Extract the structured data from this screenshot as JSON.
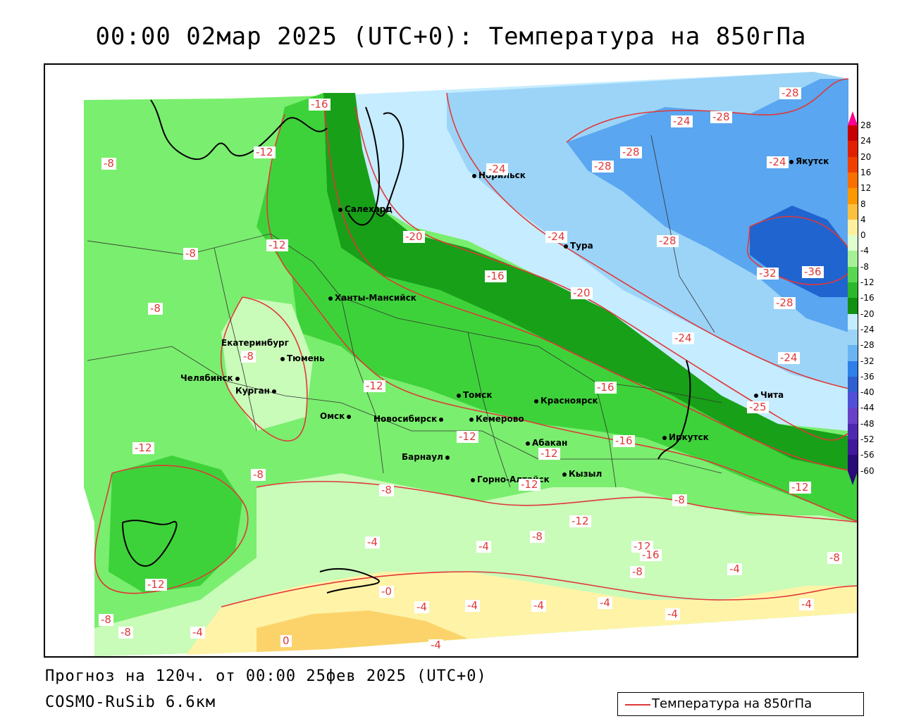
{
  "header": {
    "title": "00:00 02мар 2025 (UTC+0): Температура на 850гПа"
  },
  "footer": {
    "forecast": "Прогноз на 120ч. от 00:00 25фев 2025 (UTC+0)",
    "model": "COSMO-RuSib 6.6км"
  },
  "legend": {
    "label": "Температура на 850гПа",
    "line_color": "#e03838"
  },
  "colors": {
    "contour": "#e03838",
    "band_yellow": "#fcd36b",
    "band_lightyellow": "#fff3a8",
    "band_palegreen": "#c9fbb9",
    "band_lightgreen": "#7aee6e",
    "band_green": "#3ed23a",
    "band_darkgreen": "#18a018",
    "band_paleblue": "#c6ecff",
    "band_lightblue": "#9cd4f8",
    "band_blue": "#5aa6f0",
    "band_darkblue": "#2064d0"
  },
  "scale": {
    "labels": [
      "28",
      "24",
      "20",
      "16",
      "12",
      "8",
      "4",
      "0",
      "-4",
      "-8",
      "-12",
      "-16",
      "-20",
      "-24",
      "-28",
      "-32",
      "-36",
      "-40",
      "-44",
      "-48",
      "-52",
      "-56",
      "-60"
    ],
    "colors": [
      "#ff0090",
      "#c80000",
      "#e02000",
      "#f04000",
      "#f87000",
      "#fc9800",
      "#fcc040",
      "#fff0a0",
      "#e0ffd0",
      "#a8f098",
      "#58d850",
      "#2cb82c",
      "#129012",
      "#c6ecff",
      "#9cd4f8",
      "#6ab4f4",
      "#2e80e8",
      "#3060d0",
      "#5050d8",
      "#6a40c8",
      "#5028b0",
      "#401898",
      "#280a78"
    ]
  },
  "cities": [
    {
      "name": "Норильск"
    },
    {
      "name": "Якутск"
    },
    {
      "name": "Салехард"
    },
    {
      "name": "Тура"
    },
    {
      "name": "Ханты-Мансийск"
    },
    {
      "name": "Екатеринбург"
    },
    {
      "name": "Тюмень"
    },
    {
      "name": "Челябинск"
    },
    {
      "name": "Курган"
    },
    {
      "name": "Омск"
    },
    {
      "name": "Томск"
    },
    {
      "name": "Красноярск"
    },
    {
      "name": "Кемерово"
    },
    {
      "name": "Новосибирск"
    },
    {
      "name": "Абакан"
    },
    {
      "name": "Иркутск"
    },
    {
      "name": "Чита"
    },
    {
      "name": "Барнаул"
    },
    {
      "name": "Кызыл"
    },
    {
      "name": "Горно-Алтайск"
    }
  ],
  "contour_labels": [
    "-16",
    "-28",
    "-24",
    "-28",
    "-12",
    "-8",
    "-28",
    "-28",
    "-24",
    "-24",
    "-8",
    "-12",
    "-20",
    "-24",
    "-28",
    "-32",
    "-36",
    "-16",
    "-20",
    "-28",
    "-8",
    "-24",
    "-8",
    "-24",
    "-12",
    "-16",
    "-25",
    "-12",
    "-16",
    "-12",
    "-12",
    "-8",
    "-8",
    "-12",
    "-12",
    "-12",
    "-8",
    "-4",
    "-4",
    "-8",
    "-12",
    "-12",
    "-8",
    "-16",
    "-8",
    "-4",
    "-8",
    "-4",
    "-0",
    "-4",
    "-4",
    "-4",
    "-4",
    "-4",
    "-8",
    "-4",
    "0",
    "-4"
  ]
}
